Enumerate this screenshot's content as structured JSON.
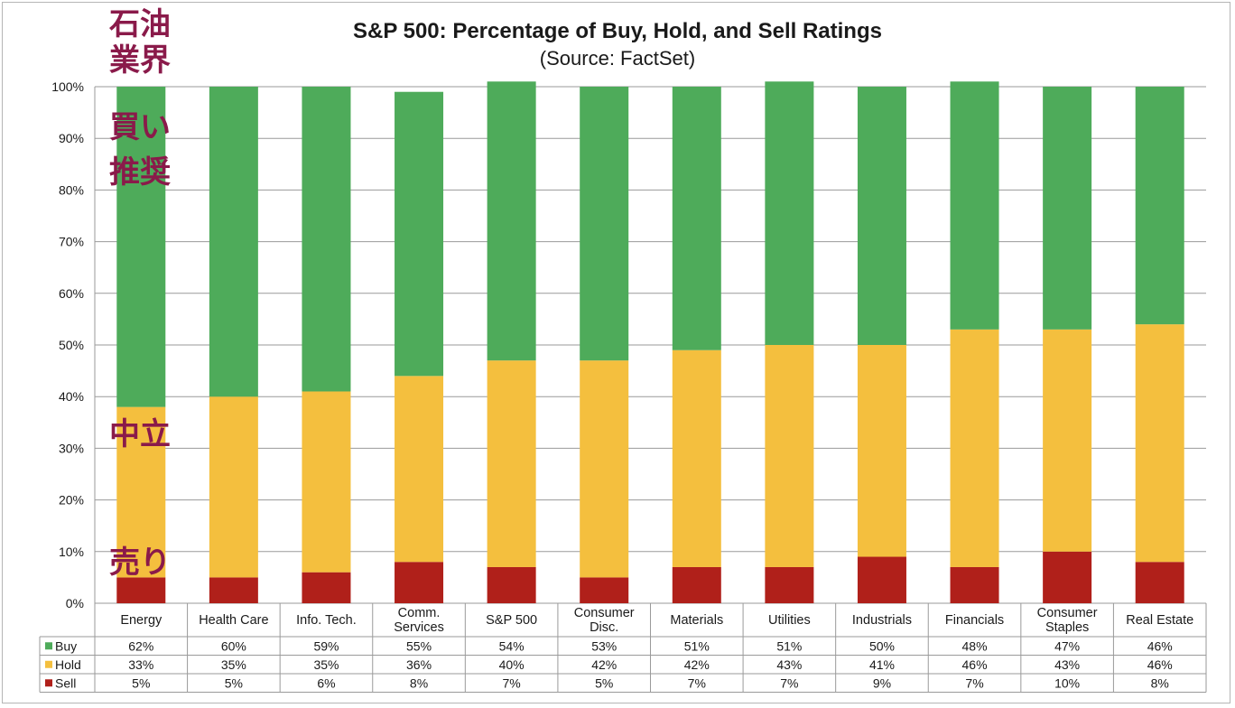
{
  "chart_data": {
    "type": "bar",
    "stacked": true,
    "title": "S&P 500: Percentage of Buy, Hold, and Sell Ratings",
    "subtitle": "(Source: FactSet)",
    "categories": [
      [
        "Energy"
      ],
      [
        "Health Care"
      ],
      [
        "Info. Tech."
      ],
      [
        "Comm.",
        "Services"
      ],
      [
        "S&P 500"
      ],
      [
        "Consumer",
        "Disc."
      ],
      [
        "Materials"
      ],
      [
        "Utilities"
      ],
      [
        "Industrials"
      ],
      [
        "Financials"
      ],
      [
        "Consumer",
        "Staples"
      ],
      [
        "Real Estate"
      ]
    ],
    "series": [
      {
        "name": "Sell",
        "color": "#b0201a",
        "values": [
          5,
          5,
          6,
          8,
          7,
          5,
          7,
          7,
          9,
          7,
          10,
          8
        ]
      },
      {
        "name": "Hold",
        "color": "#f4bf3e",
        "values": [
          33,
          35,
          35,
          36,
          40,
          42,
          42,
          43,
          41,
          46,
          43,
          46
        ]
      },
      {
        "name": "Buy",
        "color": "#4eab5a",
        "values": [
          62,
          60,
          59,
          55,
          54,
          53,
          51,
          51,
          50,
          48,
          47,
          46
        ]
      }
    ],
    "table_rows": [
      {
        "name": "Buy",
        "color": "#4eab5a",
        "labels": [
          "62%",
          "60%",
          "59%",
          "55%",
          "54%",
          "53%",
          "51%",
          "51%",
          "50%",
          "48%",
          "47%",
          "46%"
        ]
      },
      {
        "name": "Hold",
        "color": "#f4bf3e",
        "labels": [
          "33%",
          "35%",
          "35%",
          "36%",
          "40%",
          "42%",
          "42%",
          "43%",
          "41%",
          "46%",
          "43%",
          "46%"
        ]
      },
      {
        "name": "Sell",
        "color": "#b0201a",
        "labels": [
          "5%",
          "5%",
          "6%",
          "8%",
          "7%",
          "5%",
          "7%",
          "7%",
          "9%",
          "7%",
          "10%",
          "8%"
        ]
      }
    ],
    "yticks": [
      "0%",
      "10%",
      "20%",
      "30%",
      "40%",
      "50%",
      "60%",
      "70%",
      "80%",
      "90%",
      "100%"
    ],
    "ylim": [
      0,
      100
    ],
    "grid": true,
    "legend": "data-table"
  },
  "annotations": [
    {
      "lines": [
        "石油",
        "業界"
      ],
      "color": "#8a1a4a"
    },
    {
      "lines": [
        "買い",
        "推奨"
      ],
      "color": "#8a1a4a"
    },
    {
      "lines": [
        "中立"
      ],
      "color": "#8a1a4a"
    },
    {
      "lines": [
        "売り"
      ],
      "color": "#8a1a4a"
    }
  ]
}
